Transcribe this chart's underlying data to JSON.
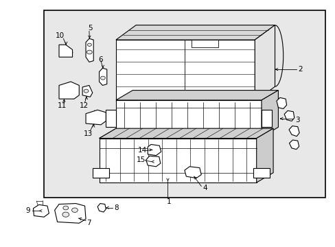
{
  "bg_color": "#ffffff",
  "box_bg": "#e8e8e8",
  "lc": "#000000",
  "tc": "#000000",
  "lw": 0.8,
  "fs": 7.5
}
